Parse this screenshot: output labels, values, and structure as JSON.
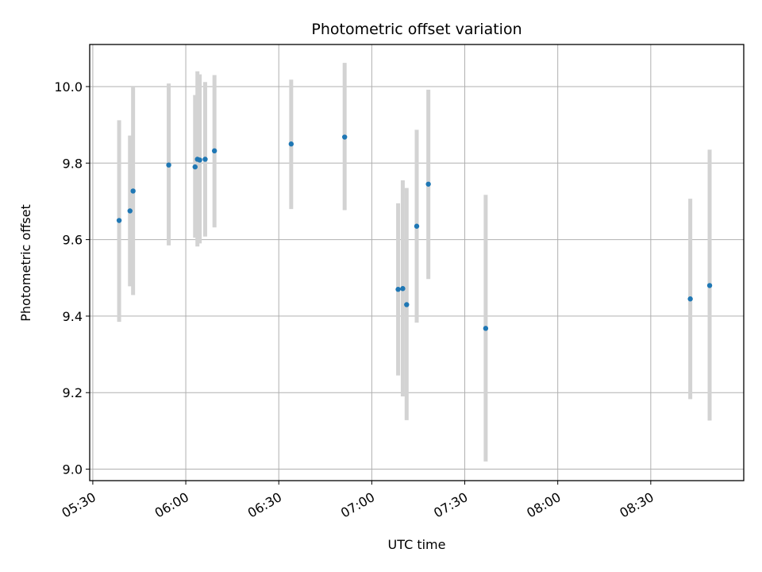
{
  "chart_data": {
    "type": "scatter",
    "title": "Photometric offset variation",
    "xlabel": "UTC time",
    "ylabel": "Photometric offset",
    "grid": true,
    "xlim": [
      "05:29",
      "09:00"
    ],
    "ylim": [
      8.97,
      10.11
    ],
    "x_ticks": [
      "05:30",
      "06:00",
      "06:30",
      "07:00",
      "07:30",
      "08:00",
      "08:30"
    ],
    "y_ticks": [
      9.0,
      9.2,
      9.4,
      9.6,
      9.8,
      10.0
    ],
    "y_tick_labels": [
      "9.0",
      "9.2",
      "9.4",
      "9.6",
      "9.8",
      "10.0"
    ],
    "point_color": "#1f77b4",
    "errorbar_color": "#d3d3d3",
    "points": [
      {
        "x": "05:38:30",
        "y": 9.65,
        "ylow": 9.385,
        "yhigh": 9.912
      },
      {
        "x": "05:42:00",
        "y": 9.675,
        "ylow": 9.478,
        "yhigh": 9.872
      },
      {
        "x": "05:43:00",
        "y": 9.727,
        "ylow": 9.455,
        "yhigh": 10.0
      },
      {
        "x": "05:54:30",
        "y": 9.795,
        "ylow": 9.585,
        "yhigh": 10.008
      },
      {
        "x": "06:03:00",
        "y": 9.79,
        "ylow": 9.605,
        "yhigh": 9.978
      },
      {
        "x": "06:03:45",
        "y": 9.81,
        "ylow": 9.582,
        "yhigh": 10.04
      },
      {
        "x": "06:04:30",
        "y": 9.808,
        "ylow": 9.59,
        "yhigh": 10.032
      },
      {
        "x": "06:06:15",
        "y": 9.81,
        "ylow": 9.608,
        "yhigh": 10.012
      },
      {
        "x": "06:09:15",
        "y": 9.832,
        "ylow": 9.632,
        "yhigh": 10.03
      },
      {
        "x": "06:34:00",
        "y": 9.85,
        "ylow": 9.68,
        "yhigh": 10.018
      },
      {
        "x": "06:51:15",
        "y": 9.868,
        "ylow": 9.677,
        "yhigh": 10.062
      },
      {
        "x": "07:08:30",
        "y": 9.47,
        "ylow": 9.245,
        "yhigh": 9.695
      },
      {
        "x": "07:10:00",
        "y": 9.472,
        "ylow": 9.19,
        "yhigh": 9.755
      },
      {
        "x": "07:11:15",
        "y": 9.43,
        "ylow": 9.128,
        "yhigh": 9.735
      },
      {
        "x": "07:14:30",
        "y": 9.635,
        "ylow": 9.383,
        "yhigh": 9.887
      },
      {
        "x": "07:18:15",
        "y": 9.745,
        "ylow": 9.497,
        "yhigh": 9.992
      },
      {
        "x": "07:36:45",
        "y": 9.368,
        "ylow": 9.02,
        "yhigh": 9.717
      },
      {
        "x": "08:42:45",
        "y": 9.445,
        "ylow": 9.183,
        "yhigh": 9.707
      },
      {
        "x": "08:49:00",
        "y": 9.48,
        "ylow": 9.127,
        "yhigh": 9.835
      }
    ]
  }
}
